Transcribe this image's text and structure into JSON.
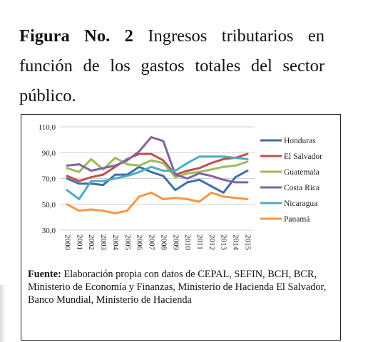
{
  "caption": {
    "label": "Figura No. 2",
    "text": " Ingresos tributarios en función de los gastos totales del sector público."
  },
  "source": {
    "label": "Fuente:",
    "text": " Elaboración propia con datos de CEPAL, SEFIN, BCH, BCR, Ministerio de Economía y Finanzas, Ministerio de Hacienda El Salvador, Banco Mundial, Ministerio de Hacienda"
  },
  "chart_data": {
    "type": "line",
    "title": "",
    "xlabel": "",
    "ylabel": "",
    "ylim": [
      30,
      110
    ],
    "yticks": [
      "30,0",
      "50,0",
      "70,0",
      "90,0",
      "110,0"
    ],
    "grid": true,
    "legend_position": "right",
    "x": [
      "2000",
      "2001",
      "2002",
      "2003",
      "2004",
      "2005",
      "2006",
      "2007",
      "2008",
      "2009",
      "2010",
      "2011",
      "2012",
      "2013",
      "2014",
      "2015"
    ],
    "series": [
      {
        "name": "Honduras",
        "color": "#3c6fa8",
        "values": [
          70,
          66,
          66,
          65,
          73,
          73,
          79,
          75,
          72,
          61,
          67,
          69,
          64,
          59,
          71,
          76
        ]
      },
      {
        "name": "El Salvador",
        "color": "#c0504d",
        "values": [
          72,
          68,
          71,
          73,
          79,
          85,
          89,
          89,
          84,
          73,
          76,
          78,
          82,
          85,
          86,
          89
        ]
      },
      {
        "name": "Guatemala",
        "color": "#9bbb59",
        "values": [
          78,
          75,
          85,
          77,
          86,
          81,
          80,
          84,
          82,
          71,
          74,
          75,
          77,
          79,
          80,
          83
        ]
      },
      {
        "name": "Costa Rica",
        "color": "#8064a2",
        "values": [
          80,
          81,
          76,
          78,
          80,
          84,
          91,
          102,
          99,
          73,
          70,
          74,
          72,
          69,
          67,
          67
        ]
      },
      {
        "name": "Nicaragua",
        "color": "#4bacc6",
        "values": [
          61,
          54,
          68,
          68,
          70,
          72,
          75,
          79,
          76,
          76,
          82,
          87,
          87,
          87,
          86,
          85
        ]
      },
      {
        "name": "Panamá",
        "color": "#f79646",
        "values": [
          50,
          45,
          46,
          45,
          43,
          45,
          56,
          59,
          54,
          55,
          54,
          52,
          59,
          56,
          55,
          54
        ]
      }
    ]
  }
}
